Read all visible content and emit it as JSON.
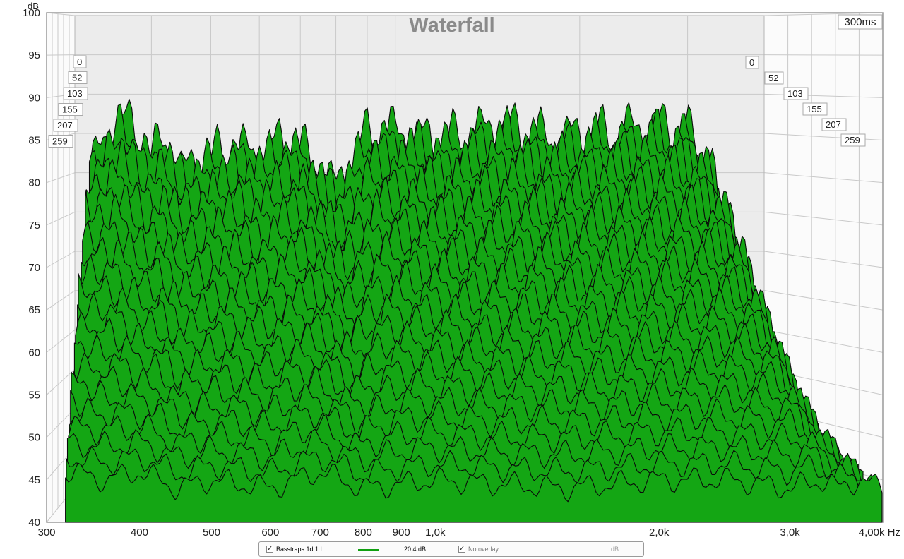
{
  "chart_data": {
    "type": "area",
    "title": "Waterfall",
    "ylabel": "dB",
    "xlabel": "Hz",
    "time_window_label": "300ms",
    "ylim": [
      40,
      100
    ],
    "y_ticks": [
      "40",
      "45",
      "50",
      "55",
      "60",
      "65",
      "70",
      "75",
      "80",
      "85",
      "90",
      "95",
      "100"
    ],
    "x_ticks": [
      {
        "hz": 300,
        "label": "300"
      },
      {
        "hz": 400,
        "label": "400"
      },
      {
        "hz": 500,
        "label": "500"
      },
      {
        "hz": 600,
        "label": "600"
      },
      {
        "hz": 700,
        "label": "700"
      },
      {
        "hz": 800,
        "label": "800"
      },
      {
        "hz": 900,
        "label": "900"
      },
      {
        "hz": 1000,
        "label": "1,0k"
      },
      {
        "hz": 2000,
        "label": "2,0k"
      },
      {
        "hz": 3000,
        "label": "3,0k"
      },
      {
        "hz": 4000,
        "label": "4,00k Hz"
      }
    ],
    "xlim": [
      300,
      4000
    ],
    "x_scale": "log",
    "time_slices_ms": [
      "0",
      "52",
      "103",
      "155",
      "207",
      "259"
    ],
    "grid": true,
    "fill_color": "#14a614",
    "line_color": "#0a0a0a",
    "series": [
      {
        "slice": "0",
        "hz": [
          320,
          360,
          400,
          420,
          450,
          500,
          550,
          600,
          650,
          700,
          800,
          900,
          1000,
          1200,
          1500,
          1800,
          2000,
          2300,
          2600,
          2800,
          3000,
          3200,
          3300,
          3500,
          3700,
          4000
        ],
        "db": [
          81,
          87,
          82,
          84,
          80,
          82,
          83,
          82,
          84,
          83,
          78,
          85,
          85,
          84,
          86,
          84,
          85,
          85,
          86,
          86,
          85,
          82,
          77,
          68,
          57,
          45
        ]
      },
      {
        "slice": "259",
        "hz": [
          320,
          360,
          400,
          450,
          500,
          600,
          700,
          800,
          1000,
          1500,
          2000,
          2500,
          3000,
          3300,
          3500,
          3700,
          4000
        ],
        "db": [
          46,
          45,
          46,
          44,
          45,
          44,
          46,
          44,
          45,
          44,
          45,
          45,
          44,
          45,
          44,
          45,
          44
        ]
      }
    ]
  },
  "legend": {
    "measurement_name": "Basstraps 1d.1 L",
    "smoothing_value": "20,4 dB",
    "overlay_label": "No overlay",
    "unit_label": "dB",
    "measurement_color": "#11a011"
  }
}
